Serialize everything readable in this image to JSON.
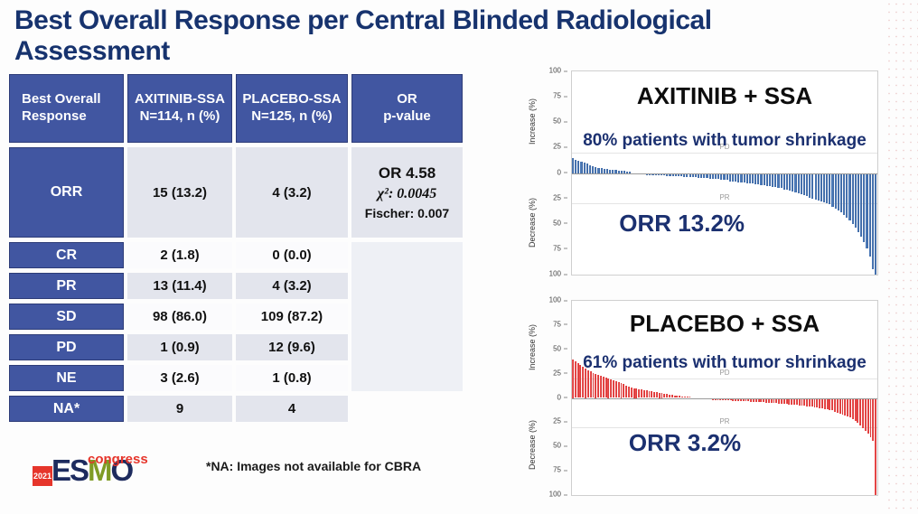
{
  "slide": {
    "title": "Best Overall Response per Central Blinded Radiological Assessment",
    "footnote": "*NA: Images not available for CBRA",
    "logo": {
      "year": "2021",
      "letters": [
        "E",
        "S",
        "M",
        "O"
      ],
      "suffix": "congress"
    }
  },
  "table": {
    "header": {
      "response": "Best Overall Response",
      "axitinib": [
        "AXITINIB-SSA",
        "N=114, n (%)"
      ],
      "placebo": [
        "PLACEBO-SSA",
        "N=125, n (%)"
      ],
      "or": [
        "OR",
        "p-value"
      ]
    },
    "orr": {
      "label": "ORR",
      "axitinib": "15 (13.2)",
      "placebo": "4 (3.2)",
      "stats": [
        "OR 4.58",
        "χ²: 0.0045",
        "Fischer: 0.007"
      ]
    },
    "rows": [
      {
        "label": "CR",
        "axitinib": "2 (1.8)",
        "placebo": "0 (0.0)"
      },
      {
        "label": "PR",
        "axitinib": "13 (11.4)",
        "placebo": "4 (3.2)"
      },
      {
        "label": "SD",
        "axitinib": "98 (86.0)",
        "placebo": "109 (87.2)"
      },
      {
        "label": "PD",
        "axitinib": "1 (0.9)",
        "placebo": "12 (9.6)"
      },
      {
        "label": "NE",
        "axitinib": "3 (2.6)",
        "placebo": "1 (0.8)"
      },
      {
        "label": "NA*",
        "axitinib": "9",
        "placebo": "4"
      }
    ]
  },
  "chart_data": [
    {
      "type": "bar",
      "variant": "waterfall",
      "title": "AXITINIB + SSA",
      "subtitle": "80% patients with tumor shrinkage",
      "annotation": "ORR 13.2%",
      "ylabel_top": "Increase (%)",
      "ylabel_bottom": "Decrease (%)",
      "yticks": [
        100,
        75,
        50,
        25,
        0,
        25,
        50,
        75,
        100
      ],
      "ylim": [
        -100,
        100
      ],
      "grid": false,
      "thresholds": {
        "pd": {
          "label": "PD",
          "value": 20
        },
        "pr": {
          "label": "PR",
          "value": -30
        }
      },
      "bar_color": "#4b79b7",
      "bar_edge": "#35588c",
      "values": [
        15,
        13,
        12,
        11,
        10,
        9,
        8,
        7,
        6,
        5,
        5,
        4,
        4,
        3,
        3,
        3,
        2,
        2,
        2,
        1,
        1,
        -1,
        -1,
        -1,
        -1,
        -1,
        -2,
        -2,
        -2,
        -2,
        -2,
        -2,
        -2,
        -3,
        -3,
        -3,
        -3,
        -3,
        -3,
        -4,
        -4,
        -4,
        -4,
        -4,
        -5,
        -5,
        -5,
        -5,
        -6,
        -6,
        -6,
        -6,
        -7,
        -7,
        -7,
        -8,
        -8,
        -8,
        -9,
        -9,
        -9,
        -10,
        -10,
        -10,
        -11,
        -11,
        -12,
        -12,
        -13,
        -13,
        -14,
        -14,
        -15,
        -15,
        -16,
        -16,
        -17,
        -18,
        -19,
        -20,
        -21,
        -22,
        -23,
        -24,
        -25,
        -26,
        -27,
        -28,
        -29,
        -30,
        -31,
        -33,
        -35,
        -37,
        -39,
        -41,
        -44,
        -47,
        -50,
        -54,
        -58,
        -63,
        -68,
        -74,
        -82,
        -95,
        -100
      ]
    },
    {
      "type": "bar",
      "variant": "waterfall",
      "title": "PLACEBO + SSA",
      "subtitle": "61% patients with tumor shrinkage",
      "annotation": "ORR 3.2%",
      "ylabel_top": "Increase (%)",
      "ylabel_bottom": "Decrease (%)",
      "yticks": [
        100,
        75,
        50,
        25,
        0,
        25,
        50,
        75,
        100
      ],
      "ylim": [
        -100,
        100
      ],
      "grid": false,
      "thresholds": {
        "pd": {
          "label": "PD",
          "value": 20
        },
        "pr": {
          "label": "PR",
          "value": -30
        }
      },
      "bar_color": "#ee4f4f",
      "bar_edge": "#c22727",
      "values": [
        40,
        38,
        36,
        34,
        32,
        30,
        28,
        27,
        26,
        25,
        24,
        23,
        22,
        21,
        20,
        19,
        18,
        17,
        16,
        15,
        14,
        13,
        12,
        11,
        10,
        10,
        9,
        9,
        8,
        8,
        7,
        7,
        6,
        6,
        5,
        5,
        4,
        4,
        3,
        3,
        2,
        2,
        2,
        1,
        1,
        1,
        1,
        -1,
        -1,
        -1,
        -1,
        -1,
        -1,
        -1,
        -1,
        -2,
        -2,
        -2,
        -2,
        -2,
        -2,
        -2,
        -2,
        -3,
        -3,
        -3,
        -3,
        -3,
        -3,
        -3,
        -4,
        -4,
        -4,
        -4,
        -4,
        -4,
        -5,
        -5,
        -5,
        -5,
        -5,
        -6,
        -6,
        -6,
        -6,
        -7,
        -7,
        -7,
        -7,
        -8,
        -8,
        -8,
        -9,
        -9,
        -9,
        -10,
        -10,
        -11,
        -11,
        -12,
        -12,
        -13,
        -13,
        -14,
        -15,
        -16,
        -17,
        -18,
        -19,
        -20,
        -22,
        -24,
        -26,
        -28,
        -31,
        -34,
        -37,
        -40,
        -44,
        -100
      ]
    }
  ],
  "colors": {
    "title_navy": "#17336e",
    "table_blue": "#4156a1",
    "chart_navy": "#1b3070",
    "axitinib_bar": "#4b79b7",
    "placebo_bar": "#ee4f4f",
    "logo_red": "#e6352b",
    "logo_navy": "#1d2b5e",
    "logo_olive": "#7f9b25"
  }
}
